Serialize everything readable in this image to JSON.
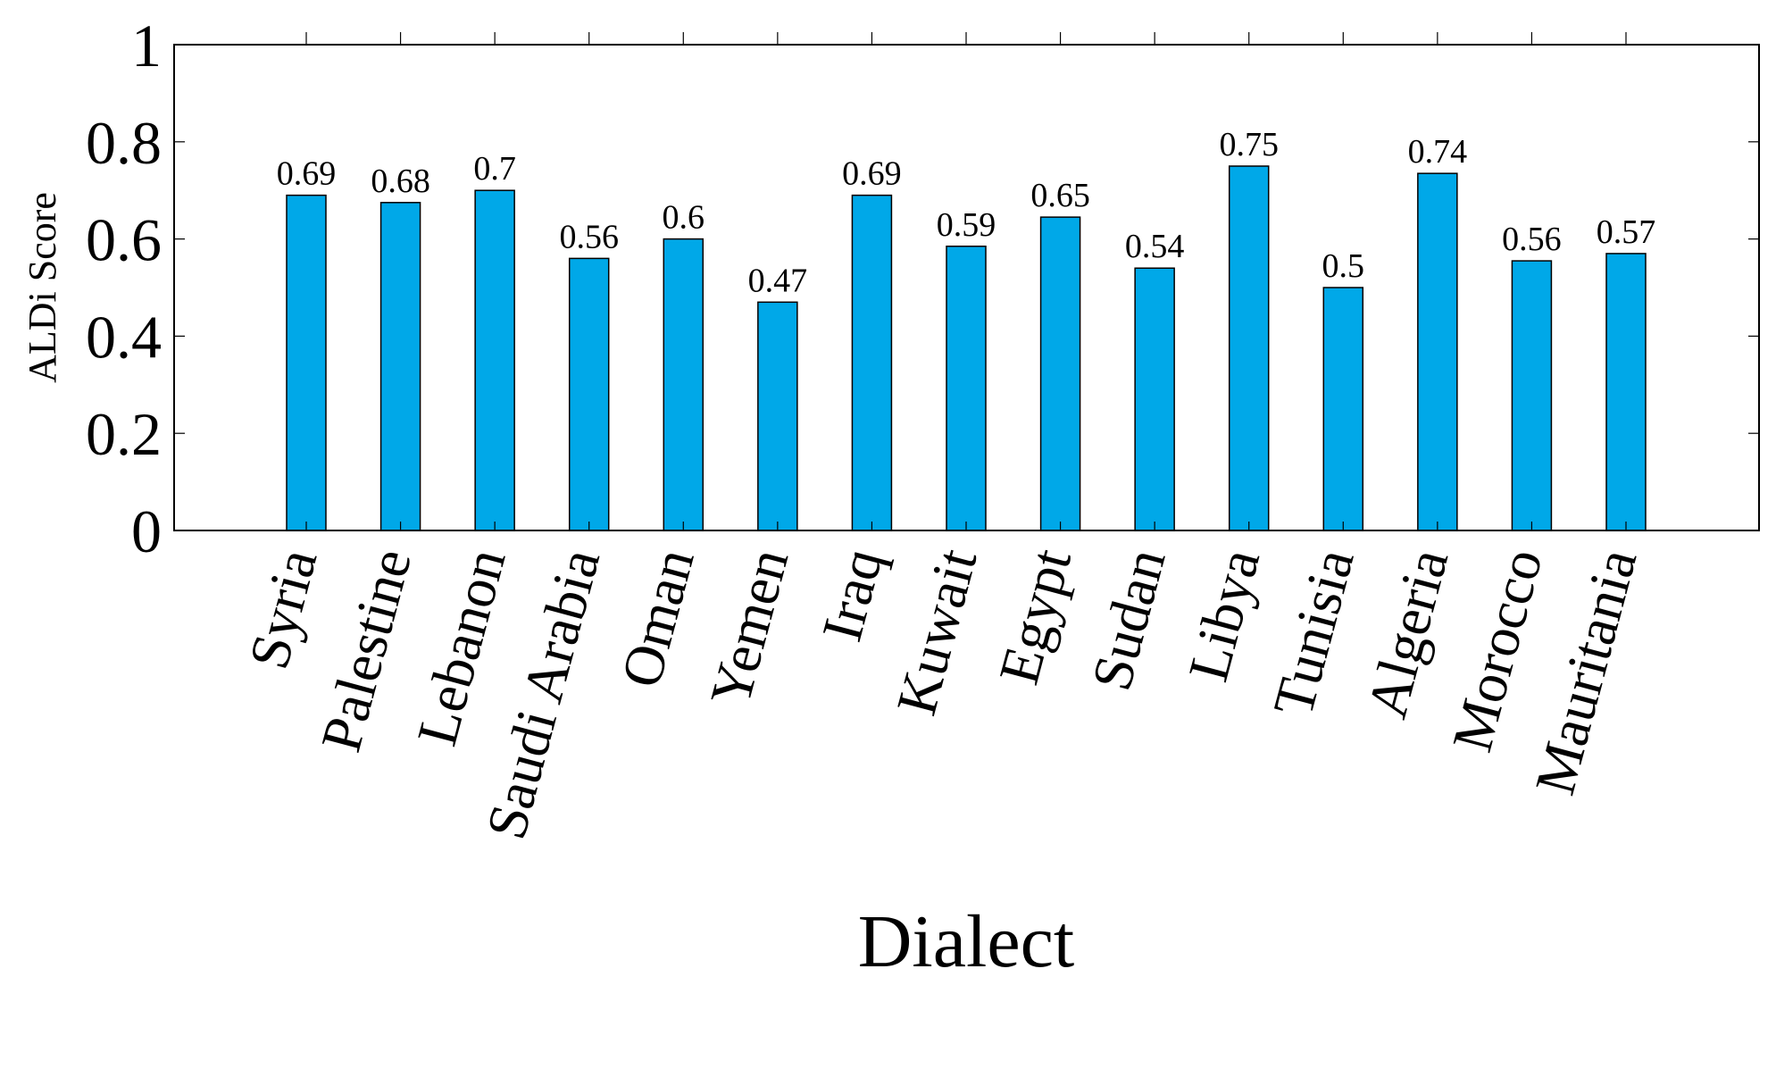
{
  "chart_data": {
    "type": "bar",
    "categories": [
      "Syria",
      "Palestine",
      "Lebanon",
      "Saudi Arabia",
      "Oman",
      "Yemen",
      "Iraq",
      "Kuwait",
      "Egypt",
      "Sudan",
      "Libya",
      "Tunisia",
      "Algeria",
      "Morocco",
      "Mauritania"
    ],
    "values": [
      0.69,
      0.675,
      0.7,
      0.56,
      0.6,
      0.47,
      0.69,
      0.585,
      0.645,
      0.54,
      0.75,
      0.5,
      0.735,
      0.555,
      0.57
    ],
    "data_labels": [
      "0.69",
      "0.68",
      "0.7",
      "0.56",
      "0.6",
      "0.47",
      "0.69",
      "0.59",
      "0.65",
      "0.54",
      "0.75",
      "0.5",
      "0.74",
      "0.56",
      "0.57"
    ],
    "xlabel": "Dialect",
    "ylabel": "ALDi Score",
    "ylim": [
      0,
      1
    ],
    "yticks": [
      "0",
      "0.2",
      "0.4",
      "0.6",
      "0.8",
      "1"
    ],
    "grid": false,
    "colors": {
      "bar_fill": "#00a8e8",
      "bar_stroke": "#000000",
      "axis": "#000000"
    }
  }
}
